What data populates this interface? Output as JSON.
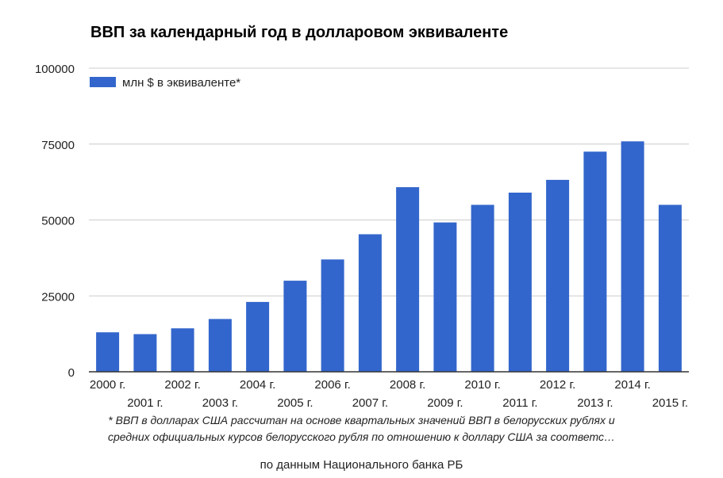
{
  "chart_data": {
    "type": "bar",
    "title": "ВВП за календарный год в долларовом эквиваленте",
    "categories": [
      "2000 г.",
      "2001 г.",
      "2002 г.",
      "2003 г.",
      "2004 г.",
      "2005 г.",
      "2006 г.",
      "2007 г.",
      "2008 г.",
      "2009 г.",
      "2010 г.",
      "2011 г.",
      "2012 г.",
      "2013 г.",
      "2014 г.",
      "2015 г."
    ],
    "series": [
      {
        "name": "млн $ в эквиваленте*",
        "values": [
          13000,
          12400,
          14300,
          17400,
          23000,
          30000,
          37000,
          45300,
          60800,
          49200,
          55000,
          59000,
          63200,
          72500,
          75900,
          55000
        ]
      }
    ],
    "ylim": [
      0,
      100000
    ],
    "yticks": [
      0,
      25000,
      50000,
      75000,
      100000
    ],
    "legend_position": "top-left",
    "grid": true,
    "colors": {
      "bar": "#3366cc",
      "grid": "#cccccc",
      "axis": "#333333"
    }
  },
  "footnote": {
    "line1": "* ВВП в долларах США рассчитан на основе квартальных значений ВВП в белорусских рублях и",
    "line2": "средних официальных курсов белорусского рубля по отношению к доллару США за соответс…"
  },
  "source": "по данным Национального банка РБ"
}
